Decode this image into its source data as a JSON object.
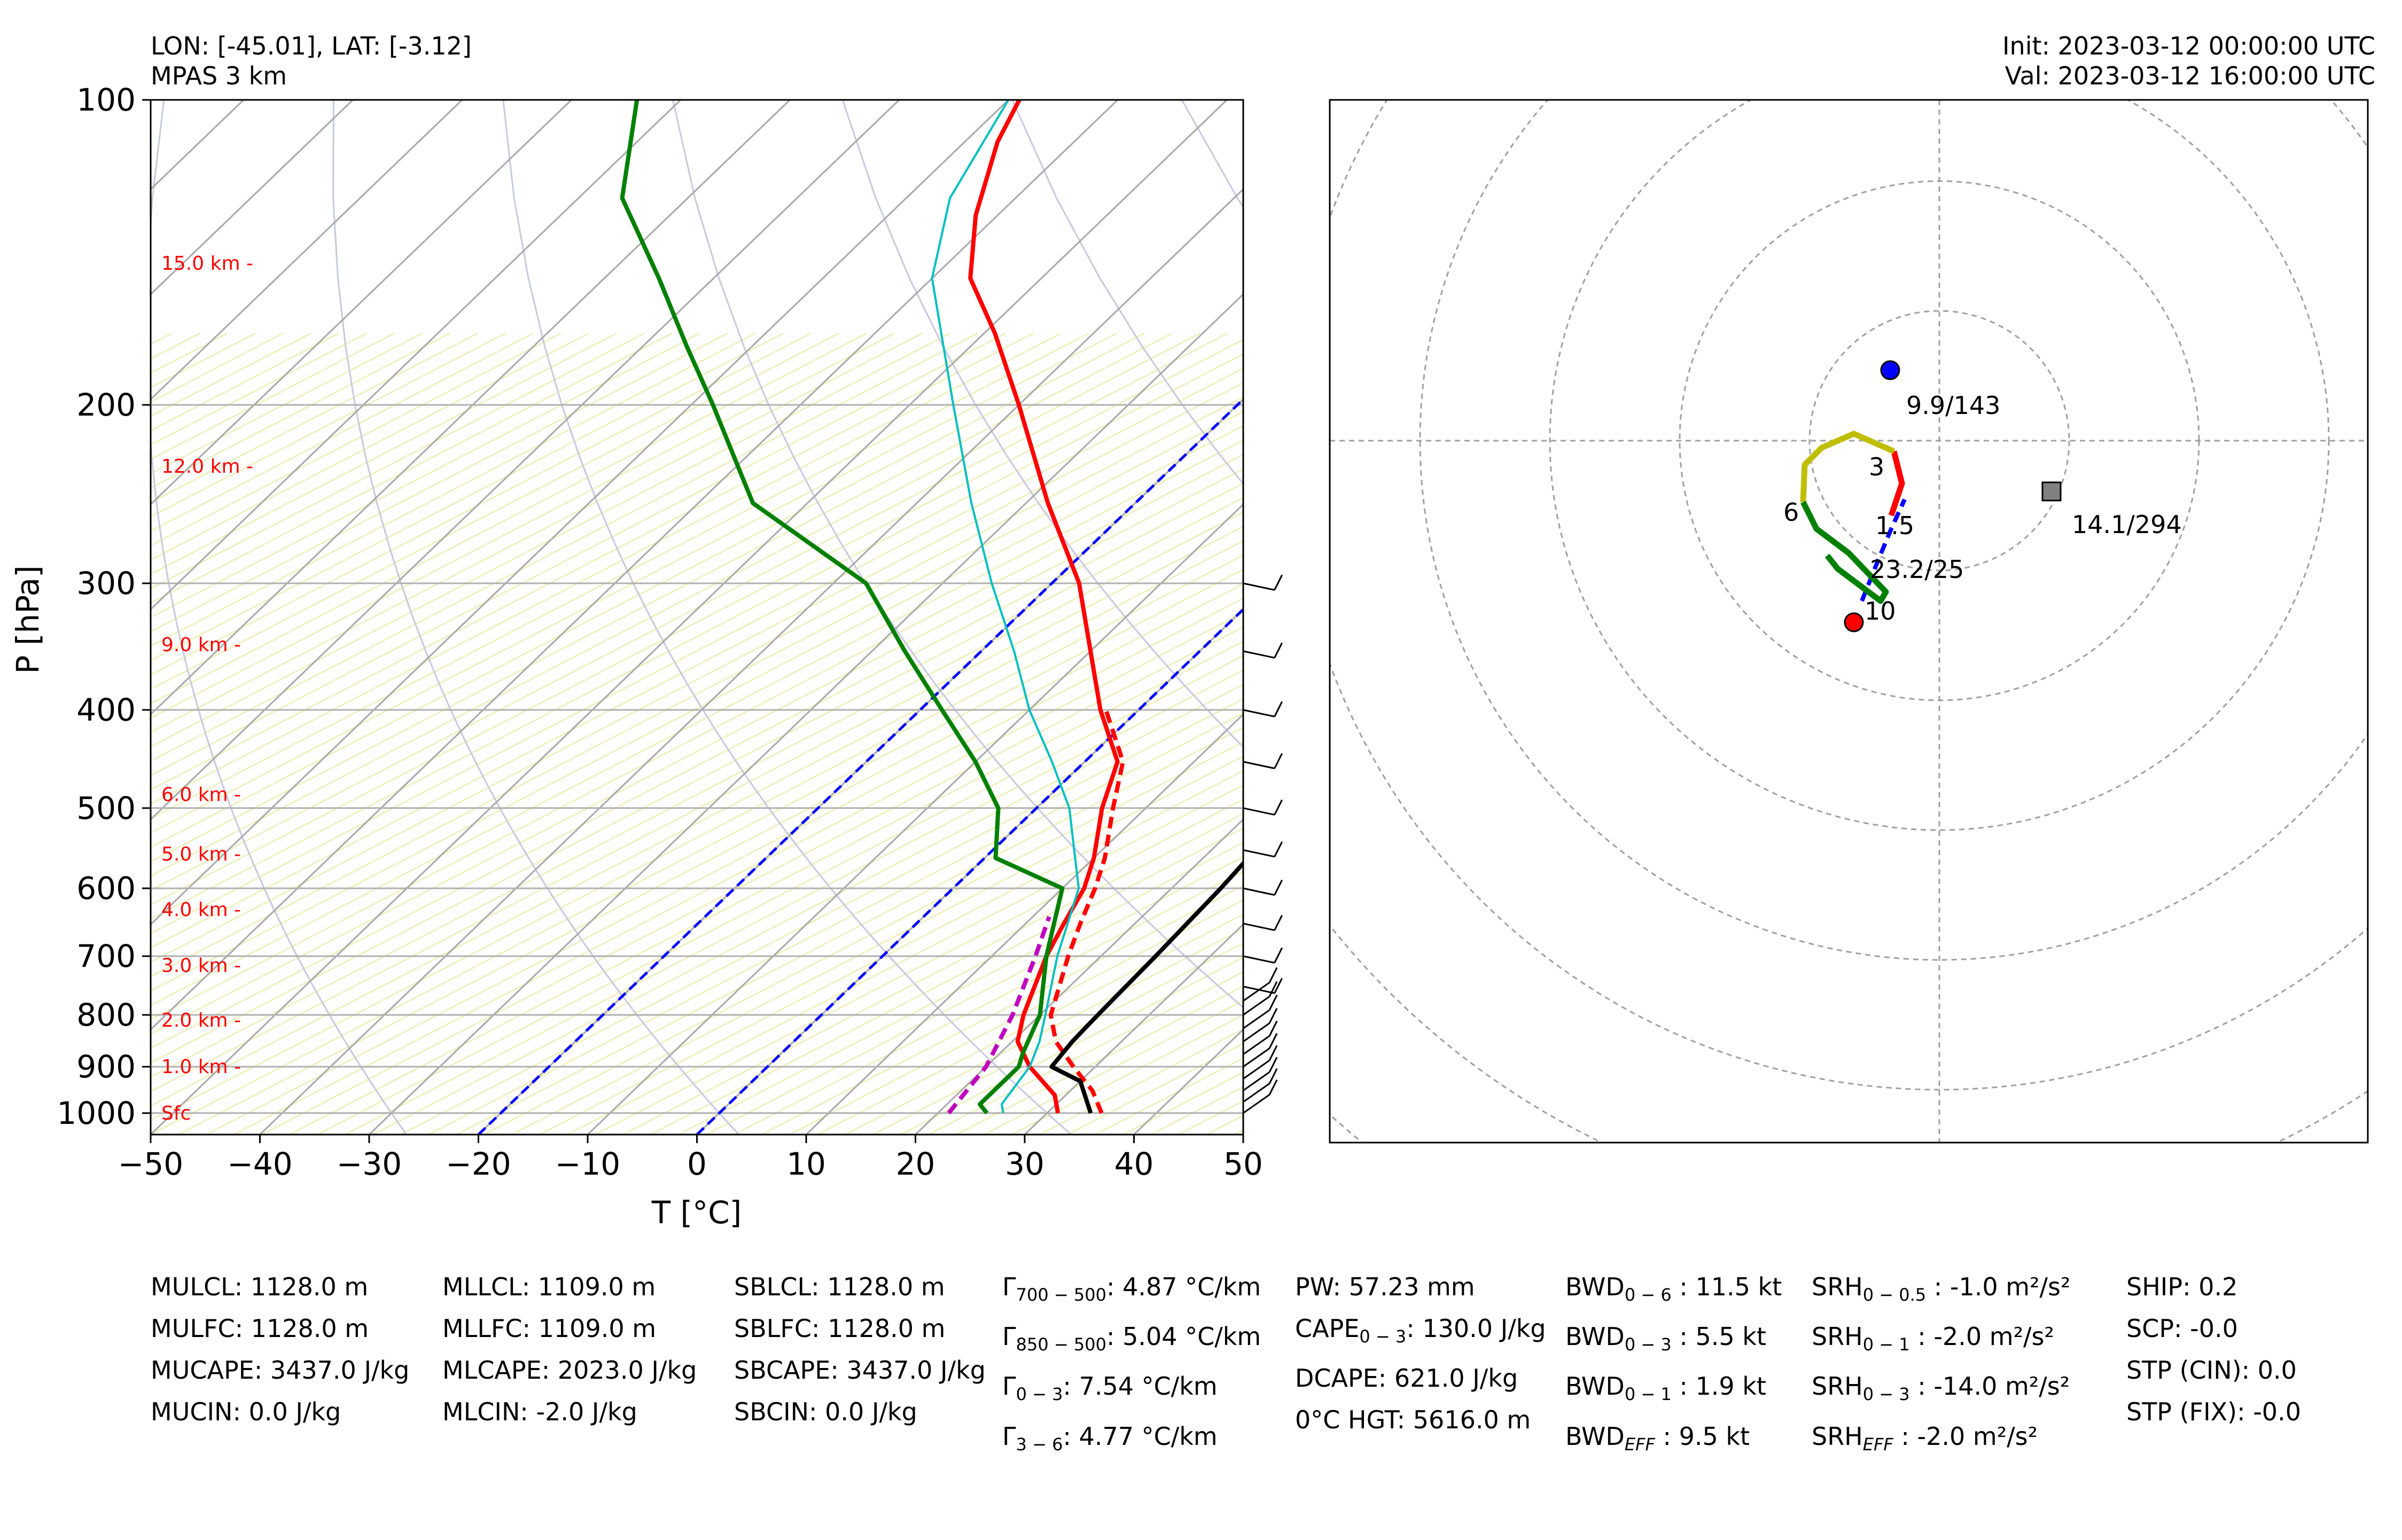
{
  "header": {
    "location": "LON: [-45.01], LAT: [-3.12]",
    "model": "MPAS 3 km",
    "init": "Init: 2023-03-12 00:00:00 UTC",
    "valid": "Val: 2023-03-12 16:00:00 UTC"
  },
  "chart_data": [
    {
      "type": "line",
      "subtype": "skew-t log-p",
      "xlabel": "T [°C]",
      "ylabel": "P [hPa]",
      "xlim": [
        -50,
        50
      ],
      "ylim": [
        1050,
        100
      ],
      "y_scale": "log",
      "x_ticks": [
        "−50",
        "−40",
        "−30",
        "−20",
        "−10",
        "0",
        "10",
        "20",
        "30",
        "40",
        "50"
      ],
      "y_ticks": [
        "100",
        "200",
        "300",
        "400",
        "500",
        "600",
        "700",
        "800",
        "900",
        "1000"
      ],
      "grid": true,
      "height_labels": [
        {
          "p": 1000,
          "label": "Sfc"
        },
        {
          "p": 900,
          "label": "1.0 km -"
        },
        {
          "p": 810,
          "label": "2.0 km -"
        },
        {
          "p": 715,
          "label": "3.0 km -"
        },
        {
          "p": 630,
          "label": "4.0 km -"
        },
        {
          "p": 555,
          "label": "5.0 km -"
        },
        {
          "p": 485,
          "label": "6.0 km -"
        },
        {
          "p": 345,
          "label": "9.0 km -"
        },
        {
          "p": 230,
          "label": "12.0 km -"
        },
        {
          "p": 145,
          "label": "15.0 km -"
        }
      ],
      "series": [
        {
          "key": "temperature",
          "color": "#ff0000",
          "style": "solid",
          "points": [
            [
              1000,
              31
            ],
            [
              960,
              29
            ],
            [
              900,
              24
            ],
            [
              850,
              20.5
            ],
            [
              800,
              18.5
            ],
            [
              700,
              15
            ],
            [
              650,
              13.5
            ],
            [
              600,
              12
            ],
            [
              560,
              10
            ],
            [
              500,
              6
            ],
            [
              450,
              3
            ],
            [
              400,
              -3.5
            ],
            [
              350,
              -10
            ],
            [
              300,
              -17.5
            ],
            [
              250,
              -28
            ],
            [
              200,
              -40
            ],
            [
              170,
              -49
            ],
            [
              150,
              -56.5
            ],
            [
              130,
              -62
            ],
            [
              110,
              -67
            ],
            [
              100,
              -69
            ]
          ]
        },
        {
          "key": "virtual-temperature",
          "color": "#ff0000",
          "style": "dashed",
          "points": [
            [
              1000,
              35
            ],
            [
              950,
              32
            ],
            [
              900,
              28
            ],
            [
              850,
              24
            ],
            [
              800,
              21
            ],
            [
              700,
              17
            ],
            [
              650,
              15
            ],
            [
              600,
              13
            ],
            [
              560,
              11
            ],
            [
              500,
              7
            ],
            [
              450,
              3.5
            ],
            [
              400,
              -3
            ]
          ]
        },
        {
          "key": "dewpoint",
          "color": "#008000",
          "style": "solid",
          "points": [
            [
              1000,
              24.5
            ],
            [
              980,
              23
            ],
            [
              900,
              23
            ],
            [
              870,
              22
            ],
            [
              800,
              20
            ],
            [
              700,
              15
            ],
            [
              600,
              10
            ],
            [
              560,
              1
            ],
            [
              500,
              -3.5
            ],
            [
              450,
              -10
            ],
            [
              400,
              -18
            ],
            [
              350,
              -27
            ],
            [
              300,
              -37
            ],
            [
              250,
              -55
            ],
            [
              200,
              -68
            ],
            [
              175,
              -76
            ],
            [
              150,
              -85
            ],
            [
              125,
              -96
            ],
            [
              100,
              -104
            ]
          ]
        },
        {
          "key": "wetbulb",
          "color": "#00bfbf",
          "style": "solid",
          "points": [
            [
              1000,
              26
            ],
            [
              980,
              25
            ],
            [
              900,
              24
            ],
            [
              850,
              22.5
            ],
            [
              800,
              20.5
            ],
            [
              700,
              16
            ],
            [
              600,
              11.5
            ],
            [
              500,
              3
            ],
            [
              450,
              -3
            ],
            [
              400,
              -10
            ],
            [
              350,
              -17
            ],
            [
              300,
              -25.5
            ],
            [
              250,
              -35
            ],
            [
              200,
              -46
            ],
            [
              150,
              -60
            ],
            [
              125,
              -66
            ],
            [
              100,
              -70
            ]
          ]
        },
        {
          "key": "parcel-profile",
          "color": "#000000",
          "style": "solid",
          "points": [
            [
              1000,
              34
            ],
            [
              930,
              30
            ],
            [
              900,
              26
            ],
            [
              850,
              25.5
            ],
            [
              800,
              25.3
            ],
            [
              700,
              25
            ],
            [
              600,
              24.5
            ],
            [
              500,
              23.5
            ],
            [
              400,
              21
            ],
            [
              350,
              19
            ],
            [
              300,
              16
            ],
            [
              250,
              12
            ],
            [
              200,
              7
            ],
            [
              150,
              -2
            ],
            [
              100,
              -12.5
            ]
          ]
        },
        {
          "key": "downdraft-profile",
          "color": "#c000c0",
          "style": "dashed",
          "points": [
            [
              1000,
              21
            ],
            [
              900,
              20
            ],
            [
              800,
              17.5
            ],
            [
              700,
              14
            ],
            [
              640,
              11.5
            ]
          ]
        }
      ],
      "isotherms_highlight": [
        {
          "t": 0,
          "color": "#0000ff"
        },
        {
          "t": -20,
          "color": "#0000ff"
        }
      ]
    },
    {
      "type": "scatter",
      "subtype": "hodograph",
      "rings": 8,
      "grid": true,
      "labels": [
        {
          "text": "9.9/143",
          "role": "storm-motion-left"
        },
        {
          "text": "14.1/294",
          "role": "mean-wind"
        },
        {
          "text": "23.2/25",
          "role": "right-mover"
        },
        {
          "text": "3",
          "role": "height-km"
        },
        {
          "text": "6",
          "role": "height-km"
        },
        {
          "text": "1.5",
          "role": "height-km"
        },
        {
          "text": "10",
          "role": "height-km"
        }
      ],
      "markers": [
        {
          "role": "left-mover",
          "color": "#0000ff",
          "shape": "circle"
        },
        {
          "role": "right-mover",
          "color": "#ff0000",
          "shape": "circle"
        },
        {
          "role": "mean-wind",
          "color": "#808080",
          "shape": "square"
        }
      ],
      "segments": [
        {
          "layer": "0-1.5 km",
          "color": "#0000ff",
          "style": "dashed"
        },
        {
          "layer": "1.5-3 km",
          "color": "#ff0000",
          "style": "solid"
        },
        {
          "layer": "3-6 km",
          "color": "#bfbf00",
          "style": "solid"
        },
        {
          "layer": "6-10 km",
          "color": "#008000",
          "style": "solid"
        }
      ]
    }
  ],
  "indices": {
    "col1": [
      "MULCL: 1128.0 m",
      "MULFC: 1128.0 m",
      "MUCAPE: 3437.0 J/kg",
      "MUCIN: 0.0 J/kg"
    ],
    "col2": [
      "MLLCL: 1109.0 m",
      "MLLFC: 1109.0 m",
      "MLCAPE: 2023.0 J/kg",
      "MLCIN: -2.0 J/kg"
    ],
    "col3": [
      "SBLCL: 1128.0 m",
      "SBLFC: 1128.0 m",
      "SBCAPE: 3437.0 J/kg",
      "SBCIN: 0.0 J/kg"
    ],
    "col4": [
      {
        "sym": "Γ",
        "sub": "700 − 500",
        "val": ": 4.87 °C/km"
      },
      {
        "sym": "Γ",
        "sub": "850 − 500",
        "val": ": 5.04 °C/km"
      },
      {
        "sym": "Γ",
        "sub": "0 − 3",
        "val": ": 7.54 °C/km"
      },
      {
        "sym": "Γ",
        "sub": "3 − 6",
        "val": ": 4.77 °C/km"
      }
    ],
    "col5": [
      {
        "sym": "PW: 57.23 mm",
        "sub": "",
        "val": ""
      },
      {
        "sym": "CAPE",
        "sub": "0 − 3",
        "val": ": 130.0 J/kg"
      },
      {
        "sym": "DCAPE: 621.0 J/kg",
        "sub": "",
        "val": ""
      },
      {
        "sym": "0°C HGT: 5616.0 m",
        "sub": "",
        "val": ""
      }
    ],
    "col6": [
      {
        "sym": "BWD",
        "sub": "0 − 6",
        "val": " : 11.5 kt"
      },
      {
        "sym": "BWD",
        "sub": "0 − 3",
        "val": " : 5.5 kt"
      },
      {
        "sym": "BWD",
        "sub": "0 − 1",
        "val": " : 1.9 kt"
      },
      {
        "sym": "BWD",
        "sub": "EFF",
        "val": " : 9.5 kt"
      }
    ],
    "col7": [
      {
        "sym": "SRH",
        "sub": "0 − 0.5",
        "val": " : -1.0 m²/s²"
      },
      {
        "sym": "SRH",
        "sub": "0 − 1",
        "val": " : -2.0 m²/s²"
      },
      {
        "sym": "SRH",
        "sub": "0 − 3",
        "val": " : -14.0 m²/s²"
      },
      {
        "sym": "SRH",
        "sub": "EFF",
        "val": " : -2.0 m²/s²"
      }
    ],
    "col8": [
      "SHIP: 0.2",
      "SCP: -0.0",
      "STP (CIN): 0.0",
      "STP (FIX): -0.0"
    ]
  }
}
